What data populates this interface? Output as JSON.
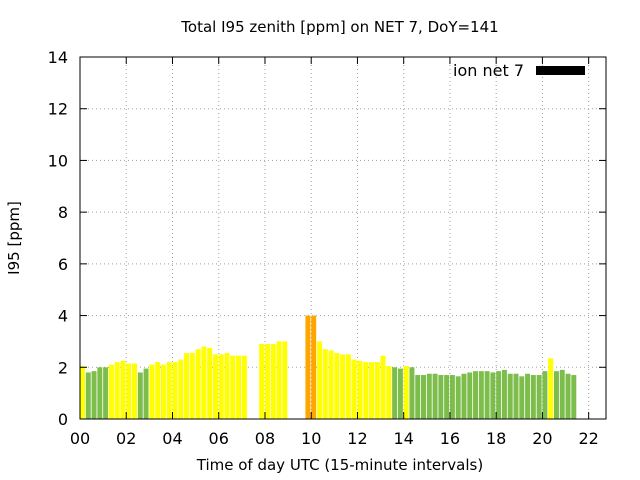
{
  "chart_data": {
    "type": "bar",
    "title": "Total I95 zenith [ppm] on NET 7, DoY=141",
    "xlabel": "Time of day UTC (15-minute intervals)",
    "ylabel": "I95 [ppm]",
    "xlim": [
      0,
      22.75
    ],
    "ylim": [
      0,
      14
    ],
    "x_ticks": [
      "00",
      "02",
      "04",
      "06",
      "08",
      "10",
      "12",
      "14",
      "16",
      "18",
      "20",
      "22"
    ],
    "y_ticks": [
      0,
      2,
      4,
      6,
      8,
      10,
      12,
      14
    ],
    "grid": true,
    "legend": {
      "label": "ion net 7",
      "color": "#000000",
      "position": "top-right"
    },
    "colors": {
      "green": "#7dbd4c",
      "yellow": "#ffff00",
      "orange": "#ffa500"
    },
    "bar_interval_hours": 0.25,
    "series": [
      {
        "bars": [
          {
            "x": 0.0,
            "y": 2.05,
            "color": "yellow"
          },
          {
            "x": 0.25,
            "y": 1.8,
            "color": "green"
          },
          {
            "x": 0.5,
            "y": 1.85,
            "color": "green"
          },
          {
            "x": 0.75,
            "y": 2.0,
            "color": "green"
          },
          {
            "x": 1.0,
            "y": 2.0,
            "color": "green"
          },
          {
            "x": 1.25,
            "y": 2.1,
            "color": "yellow"
          },
          {
            "x": 1.5,
            "y": 2.2,
            "color": "yellow"
          },
          {
            "x": 1.75,
            "y": 2.25,
            "color": "yellow"
          },
          {
            "x": 2.0,
            "y": 2.15,
            "color": "yellow"
          },
          {
            "x": 2.25,
            "y": 2.15,
            "color": "yellow"
          },
          {
            "x": 2.5,
            "y": 1.8,
            "color": "green"
          },
          {
            "x": 2.75,
            "y": 1.95,
            "color": "green"
          },
          {
            "x": 3.0,
            "y": 2.1,
            "color": "yellow"
          },
          {
            "x": 3.25,
            "y": 2.2,
            "color": "yellow"
          },
          {
            "x": 3.5,
            "y": 2.1,
            "color": "yellow"
          },
          {
            "x": 3.75,
            "y": 2.2,
            "color": "yellow"
          },
          {
            "x": 4.0,
            "y": 2.2,
            "color": "yellow"
          },
          {
            "x": 4.25,
            "y": 2.3,
            "color": "yellow"
          },
          {
            "x": 4.5,
            "y": 2.55,
            "color": "yellow"
          },
          {
            "x": 4.75,
            "y": 2.55,
            "color": "yellow"
          },
          {
            "x": 5.0,
            "y": 2.7,
            "color": "yellow"
          },
          {
            "x": 5.25,
            "y": 2.8,
            "color": "yellow"
          },
          {
            "x": 5.5,
            "y": 2.75,
            "color": "yellow"
          },
          {
            "x": 5.75,
            "y": 2.5,
            "color": "yellow"
          },
          {
            "x": 6.0,
            "y": 2.5,
            "color": "yellow"
          },
          {
            "x": 6.25,
            "y": 2.55,
            "color": "yellow"
          },
          {
            "x": 6.5,
            "y": 2.45,
            "color": "yellow"
          },
          {
            "x": 6.75,
            "y": 2.45,
            "color": "yellow"
          },
          {
            "x": 7.0,
            "y": 2.45,
            "color": "yellow"
          },
          {
            "x": 7.75,
            "y": 2.9,
            "color": "yellow"
          },
          {
            "x": 8.0,
            "y": 2.9,
            "color": "yellow"
          },
          {
            "x": 8.25,
            "y": 2.9,
            "color": "yellow"
          },
          {
            "x": 8.5,
            "y": 3.0,
            "color": "yellow"
          },
          {
            "x": 8.75,
            "y": 3.0,
            "color": "yellow"
          },
          {
            "x": 9.75,
            "y": 4.0,
            "color": "orange"
          },
          {
            "x": 10.0,
            "y": 4.0,
            "color": "orange"
          },
          {
            "x": 10.25,
            "y": 3.0,
            "color": "yellow"
          },
          {
            "x": 10.5,
            "y": 2.7,
            "color": "yellow"
          },
          {
            "x": 10.75,
            "y": 2.65,
            "color": "yellow"
          },
          {
            "x": 11.0,
            "y": 2.55,
            "color": "yellow"
          },
          {
            "x": 11.25,
            "y": 2.5,
            "color": "yellow"
          },
          {
            "x": 11.5,
            "y": 2.5,
            "color": "yellow"
          },
          {
            "x": 11.75,
            "y": 2.3,
            "color": "yellow"
          },
          {
            "x": 12.0,
            "y": 2.25,
            "color": "yellow"
          },
          {
            "x": 12.25,
            "y": 2.2,
            "color": "yellow"
          },
          {
            "x": 12.5,
            "y": 2.2,
            "color": "yellow"
          },
          {
            "x": 12.75,
            "y": 2.2,
            "color": "yellow"
          },
          {
            "x": 13.0,
            "y": 2.45,
            "color": "yellow"
          },
          {
            "x": 13.25,
            "y": 2.05,
            "color": "yellow"
          },
          {
            "x": 13.5,
            "y": 2.0,
            "color": "green"
          },
          {
            "x": 13.75,
            "y": 1.95,
            "color": "green"
          },
          {
            "x": 14.0,
            "y": 2.05,
            "color": "yellow"
          },
          {
            "x": 14.25,
            "y": 2.0,
            "color": "green"
          },
          {
            "x": 14.5,
            "y": 1.7,
            "color": "green"
          },
          {
            "x": 14.75,
            "y": 1.7,
            "color": "green"
          },
          {
            "x": 15.0,
            "y": 1.75,
            "color": "green"
          },
          {
            "x": 15.25,
            "y": 1.75,
            "color": "green"
          },
          {
            "x": 15.5,
            "y": 1.7,
            "color": "green"
          },
          {
            "x": 15.75,
            "y": 1.7,
            "color": "green"
          },
          {
            "x": 16.0,
            "y": 1.7,
            "color": "green"
          },
          {
            "x": 16.25,
            "y": 1.65,
            "color": "green"
          },
          {
            "x": 16.5,
            "y": 1.75,
            "color": "green"
          },
          {
            "x": 16.75,
            "y": 1.8,
            "color": "green"
          },
          {
            "x": 17.0,
            "y": 1.85,
            "color": "green"
          },
          {
            "x": 17.25,
            "y": 1.85,
            "color": "green"
          },
          {
            "x": 17.5,
            "y": 1.85,
            "color": "green"
          },
          {
            "x": 17.75,
            "y": 1.8,
            "color": "green"
          },
          {
            "x": 18.0,
            "y": 1.85,
            "color": "green"
          },
          {
            "x": 18.25,
            "y": 1.9,
            "color": "green"
          },
          {
            "x": 18.5,
            "y": 1.75,
            "color": "green"
          },
          {
            "x": 18.75,
            "y": 1.75,
            "color": "green"
          },
          {
            "x": 19.0,
            "y": 1.65,
            "color": "green"
          },
          {
            "x": 19.25,
            "y": 1.75,
            "color": "green"
          },
          {
            "x": 19.5,
            "y": 1.7,
            "color": "green"
          },
          {
            "x": 19.75,
            "y": 1.7,
            "color": "green"
          },
          {
            "x": 20.0,
            "y": 1.85,
            "color": "green"
          },
          {
            "x": 20.25,
            "y": 2.35,
            "color": "yellow"
          },
          {
            "x": 20.5,
            "y": 1.85,
            "color": "green"
          },
          {
            "x": 20.75,
            "y": 1.9,
            "color": "green"
          },
          {
            "x": 21.0,
            "y": 1.75,
            "color": "green"
          },
          {
            "x": 21.25,
            "y": 1.7,
            "color": "green"
          }
        ]
      }
    ]
  }
}
